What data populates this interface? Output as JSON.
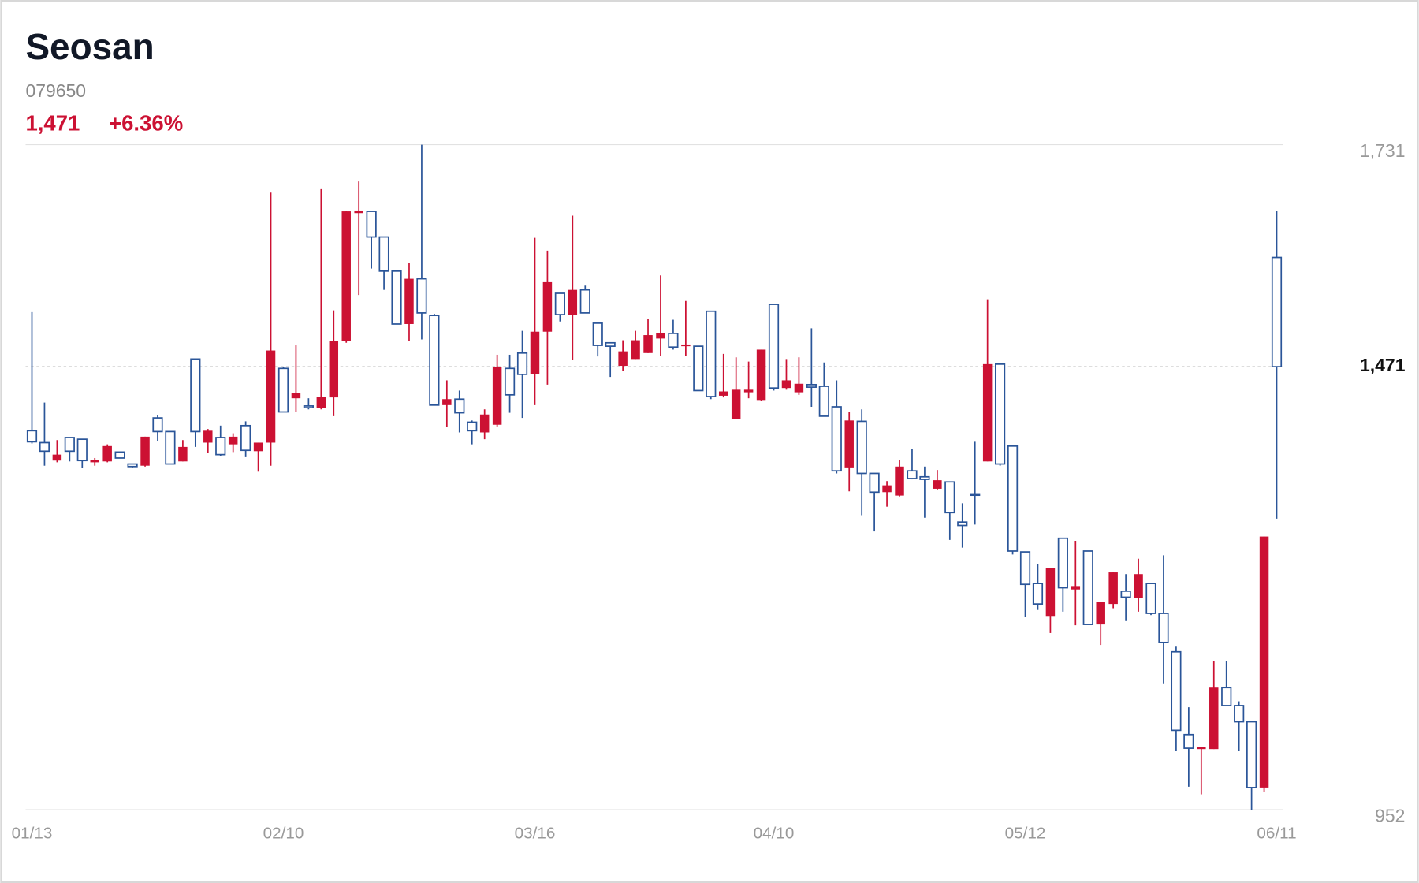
{
  "header": {
    "title": "Seosan",
    "code": "079650",
    "change": "+6.36%"
  },
  "chart_data": {
    "type": "candlestick",
    "categories": [
      "01/13",
      null,
      null,
      null,
      null,
      null,
      null,
      null,
      null,
      null,
      null,
      null,
      null,
      null,
      null,
      null,
      null,
      null,
      null,
      null,
      "02/10",
      null,
      null,
      null,
      null,
      null,
      null,
      null,
      null,
      null,
      null,
      null,
      null,
      null,
      null,
      null,
      null,
      null,
      null,
      null,
      "03/16",
      null,
      null,
      null,
      null,
      null,
      null,
      null,
      null,
      null,
      null,
      null,
      null,
      null,
      null,
      null,
      null,
      null,
      null,
      "04/10",
      null,
      null,
      null,
      null,
      null,
      null,
      null,
      null,
      null,
      null,
      null,
      null,
      null,
      null,
      null,
      null,
      null,
      null,
      null,
      "05/12",
      null,
      null,
      null,
      null,
      null,
      null,
      null,
      null,
      null,
      null,
      null,
      null,
      null,
      null,
      null,
      null,
      null,
      null,
      null,
      "06/11"
    ],
    "open": [
      1396,
      1382,
      1361,
      1388,
      1386,
      1359,
      1360,
      1371,
      1357,
      1355,
      1411,
      1395,
      1360,
      1480,
      1382,
      1388,
      1380,
      1402,
      1372,
      1382,
      1469,
      1434,
      1425,
      1423,
      1435,
      1501,
      1651,
      1653,
      1623,
      1583,
      1521,
      1574,
      1531,
      1426,
      1433,
      1406,
      1394,
      1403,
      1469,
      1487,
      1462,
      1512,
      1557,
      1532,
      1561,
      1522,
      1499,
      1472,
      1480,
      1487,
      1504,
      1510,
      1495,
      1495,
      1536,
      1437,
      1410,
      1441,
      1432,
      1544,
      1446,
      1441,
      1450,
      1448,
      1424,
      1353,
      1407,
      1346,
      1324,
      1320,
      1349,
      1342,
      1328,
      1336,
      1289,
      1322,
      1360,
      1474,
      1378,
      1254,
      1217,
      1179,
      1270,
      1210,
      1255,
      1169,
      1193,
      1208,
      1200,
      1217,
      1182,
      1137,
      1040,
      1023,
      1023,
      1095,
      1074,
      1055,
      978,
      1599
    ],
    "high": [
      1535,
      1429,
      1385,
      1388,
      1386,
      1364,
      1380,
      1371,
      1357,
      1389,
      1414,
      1395,
      1385,
      1480,
      1398,
      1402,
      1393,
      1407,
      1382,
      1675,
      1471,
      1496,
      1434,
      1679,
      1537,
      1653,
      1688,
      1653,
      1623,
      1583,
      1593,
      1731,
      1533,
      1455,
      1443,
      1408,
      1421,
      1485,
      1485,
      1513,
      1622,
      1607,
      1557,
      1648,
      1566,
      1522,
      1499,
      1502,
      1513,
      1527,
      1578,
      1526,
      1548,
      1495,
      1536,
      1486,
      1482,
      1477,
      1491,
      1544,
      1480,
      1482,
      1516,
      1476,
      1455,
      1418,
      1421,
      1346,
      1337,
      1362,
      1375,
      1354,
      1350,
      1336,
      1311,
      1383,
      1550,
      1474,
      1378,
      1254,
      1240,
      1235,
      1270,
      1267,
      1255,
      1195,
      1230,
      1228,
      1246,
      1217,
      1250,
      1143,
      1072,
      1025,
      1126,
      1126,
      1079,
      1055,
      1272,
      1654
    ],
    "low": [
      1381,
      1355,
      1359,
      1360,
      1352,
      1355,
      1359,
      1364,
      1353,
      1354,
      1384,
      1357,
      1360,
      1377,
      1370,
      1366,
      1371,
      1365,
      1348,
      1355,
      1418,
      1418,
      1421,
      1421,
      1413,
      1499,
      1555,
      1586,
      1561,
      1521,
      1501,
      1503,
      1426,
      1400,
      1394,
      1380,
      1386,
      1401,
      1417,
      1411,
      1426,
      1450,
      1524,
      1479,
      1534,
      1483,
      1459,
      1466,
      1480,
      1487,
      1484,
      1491,
      1484,
      1443,
      1433,
      1435,
      1410,
      1434,
      1431,
      1443,
      1444,
      1438,
      1424,
      1413,
      1346,
      1325,
      1297,
      1278,
      1307,
      1319,
      1339,
      1294,
      1327,
      1268,
      1259,
      1286,
      1360,
      1355,
      1251,
      1178,
      1186,
      1159,
      1184,
      1168,
      1169,
      1145,
      1188,
      1173,
      1184,
      1180,
      1100,
      1021,
      979,
      970,
      1023,
      1074,
      1021,
      952,
      973,
      1293
    ],
    "close": [
      1383,
      1372,
      1368,
      1372,
      1361,
      1362,
      1378,
      1364,
      1354,
      1389,
      1395,
      1357,
      1377,
      1395,
      1396,
      1368,
      1389,
      1373,
      1382,
      1490,
      1418,
      1440,
      1423,
      1436,
      1501,
      1653,
      1654,
      1623,
      1583,
      1521,
      1574,
      1534,
      1426,
      1433,
      1417,
      1396,
      1415,
      1471,
      1438,
      1462,
      1512,
      1570,
      1532,
      1561,
      1534,
      1496,
      1495,
      1489,
      1502,
      1508,
      1510,
      1494,
      1497,
      1443,
      1436,
      1442,
      1444,
      1444,
      1491,
      1446,
      1455,
      1451,
      1447,
      1413,
      1349,
      1408,
      1346,
      1324,
      1332,
      1354,
      1340,
      1339,
      1338,
      1300,
      1285,
      1321,
      1474,
      1357,
      1255,
      1216,
      1193,
      1235,
      1212,
      1214,
      1169,
      1195,
      1230,
      1201,
      1228,
      1182,
      1148,
      1045,
      1024,
      1025,
      1095,
      1074,
      1055,
      978,
      1272,
      1471
    ],
    "up_color": "#cc1133",
    "down_color": "#2a5599",
    "ylim": [
      952,
      1731
    ],
    "yticks": [
      {
        "value": 1731,
        "label": "1,731"
      },
      952
    ],
    "current": {
      "value": 1471,
      "label": "1,471"
    }
  }
}
